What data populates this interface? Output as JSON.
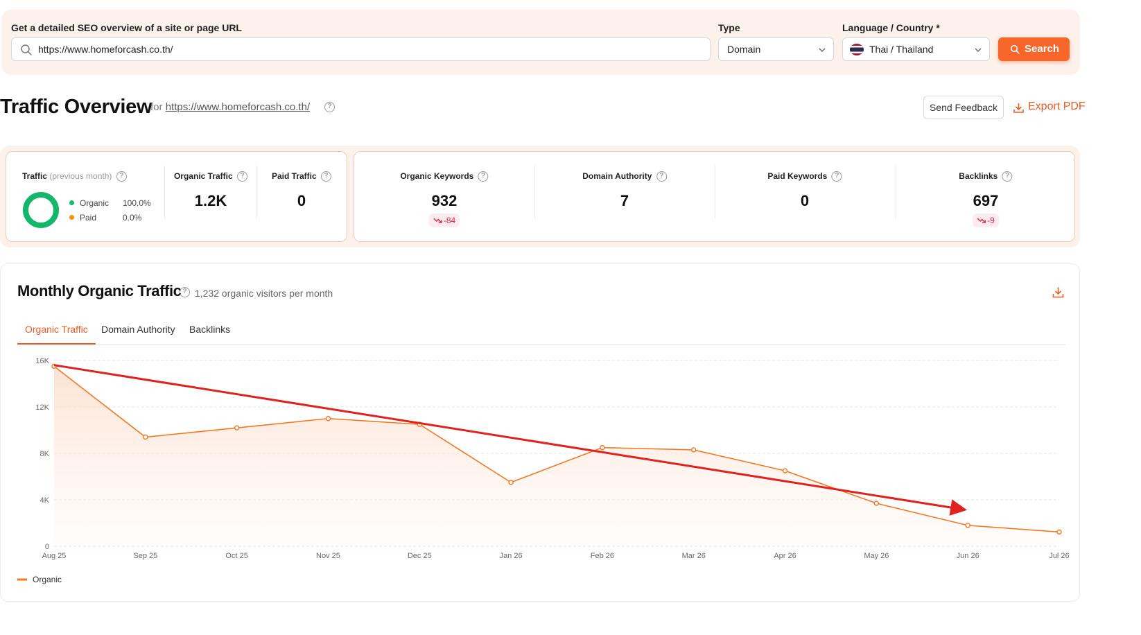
{
  "search": {
    "url_label": "Get a detailed SEO overview of a site or page URL",
    "url_value": "https://www.homeforcash.co.th/",
    "type_label": "Type",
    "type_value": "Domain",
    "lang_label": "Language / Country *",
    "lang_value": "Thai / Thailand",
    "search_button": "Search",
    "icons": {
      "search": "search-icon",
      "chevron": "chevron-down-icon",
      "flag": "thailand-flag-icon"
    }
  },
  "header": {
    "title": "Traffic Overview",
    "for_prefix": "for",
    "for_url": "https://www.homeforcash.co.th/",
    "feedback_button": "Send Feedback",
    "export_button": "Export PDF"
  },
  "stats": {
    "traffic": {
      "label": "Traffic",
      "period": "(previous month)",
      "legend": [
        {
          "name": "Organic",
          "value": "100.0%",
          "color": "#12b76a"
        },
        {
          "name": "Paid",
          "value": "0.0%",
          "color": "#f79009"
        }
      ],
      "organic_share": 1.0
    },
    "organic_traffic": {
      "label": "Organic Traffic",
      "value": "1.2K"
    },
    "paid_traffic": {
      "label": "Paid Traffic",
      "value": "0"
    },
    "organic_keywords": {
      "label": "Organic Keywords",
      "value": "932",
      "delta": "-84"
    },
    "domain_authority": {
      "label": "Domain Authority",
      "value": "7"
    },
    "paid_keywords": {
      "label": "Paid Keywords",
      "value": "0"
    },
    "backlinks": {
      "label": "Backlinks",
      "value": "697",
      "delta": "-9"
    }
  },
  "chart_section": {
    "title": "Monthly Organic Traffic",
    "subtitle": "1,232 organic visitors per month",
    "tabs": [
      {
        "label": "Organic Traffic",
        "active": true
      },
      {
        "label": "Domain Authority",
        "active": false
      },
      {
        "label": "Backlinks",
        "active": false
      }
    ]
  },
  "chart_data": {
    "type": "area",
    "categories": [
      "Aug 25",
      "Sep 25",
      "Oct 25",
      "Nov 25",
      "Dec 25",
      "Jan 26",
      "Feb 26",
      "Mar 26",
      "Apr 26",
      "May 26",
      "Jun 26",
      "Jul 26"
    ],
    "series": [
      {
        "name": "Organic",
        "color": "#f7771f",
        "values": [
          15500,
          9400,
          10200,
          11000,
          10500,
          5500,
          8500,
          8300,
          6500,
          3700,
          1800,
          1232
        ]
      }
    ],
    "y_ticks": [
      "0",
      "4K",
      "8K",
      "12K",
      "16K"
    ],
    "ylim": [
      0,
      16000
    ],
    "grid": true,
    "legend": "bottom-left",
    "annotation": {
      "type": "trend-arrow",
      "color": "#e32020",
      "from": [
        "Aug 25",
        15600
      ],
      "to": [
        "Jun 26",
        3200
      ]
    }
  }
}
